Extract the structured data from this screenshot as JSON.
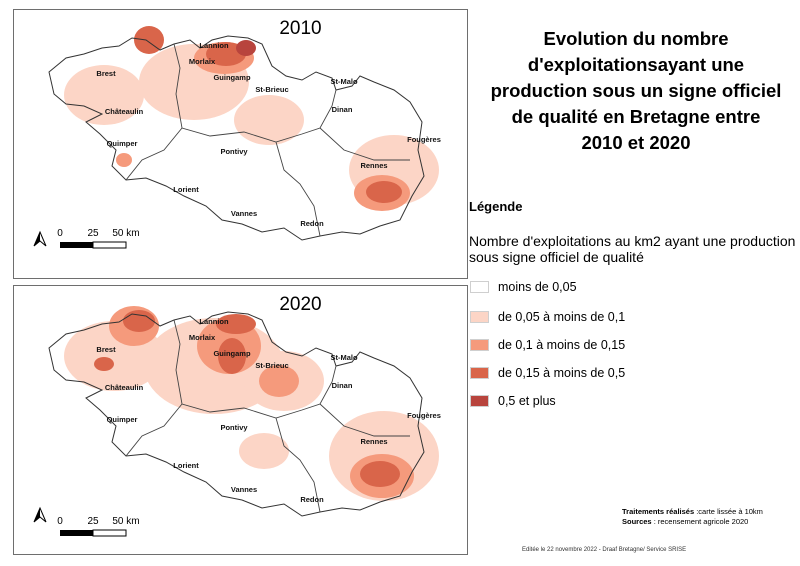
{
  "title": "Evolution du nombre d'exploitationsayant une production sous un signe officiel de qualité en Bretagne entre 2010 et 2020",
  "maps": [
    {
      "year": "2010"
    },
    {
      "year": "2020"
    }
  ],
  "cities": [
    "Lannion",
    "Brest",
    "Morlaix",
    "Guingamp",
    "St-Malo",
    "St-Brieuc",
    "Dinan",
    "Châteaulin",
    "Fougères",
    "Quimper",
    "Pontivy",
    "Rennes",
    "Lorient",
    "Vannes",
    "Redon"
  ],
  "scale_bar": {
    "ticks": [
      "0",
      "25",
      "50 km"
    ]
  },
  "legend": {
    "heading": "Légende",
    "subtitle": "Nombre d'exploitations au km2 ayant une production sous signe officiel de qualité",
    "classes": [
      {
        "label": "moins de 0,05",
        "color": "#ffffff"
      },
      {
        "label": "de 0,05 à moins de 0,1",
        "color": "#fcd5c6"
      },
      {
        "label": "de 0,1 à moins de 0,15",
        "color": "#f59a7c"
      },
      {
        "label": "de 0,15 à moins de 0,5",
        "color": "#d9654a"
      },
      {
        "label": "0,5 et plus",
        "color": "#b8443d"
      }
    ]
  },
  "credits": {
    "treatments_label": "Traitements réalisés",
    "treatments_value": " :carte lissée à 10km",
    "sources_label": "Sources",
    "sources_value": " : recensement agricole 2020"
  },
  "edited": "Editée le 22 novembre 2022 - Draaf Bretagne/ Service SRISE"
}
